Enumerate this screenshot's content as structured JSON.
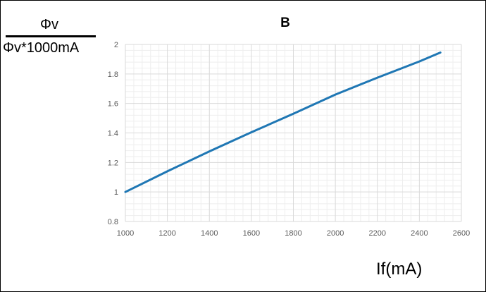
{
  "chart_data": {
    "type": "line",
    "title": "B",
    "ylabel_numerator": "Φv",
    "ylabel_denominator": "Φv*1000mA",
    "xlabel": "If(mA)",
    "xlim": [
      1000,
      2600
    ],
    "ylim": [
      0.8,
      2.0
    ],
    "x_ticks": [
      1000,
      1200,
      1400,
      1600,
      1800,
      2000,
      2200,
      2400,
      2600
    ],
    "y_ticks": [
      "0.8",
      "1",
      "1.2",
      "1.4",
      "1.6",
      "1.8",
      "2"
    ],
    "grid": true,
    "series": [
      {
        "color": "#1f77b4",
        "x": [
          1000,
          1200,
          1400,
          1600,
          1800,
          2000,
          2200,
          2400,
          2500
        ],
        "y": [
          1.0,
          1.14,
          1.275,
          1.405,
          1.53,
          1.66,
          1.775,
          1.885,
          1.945
        ]
      }
    ]
  }
}
